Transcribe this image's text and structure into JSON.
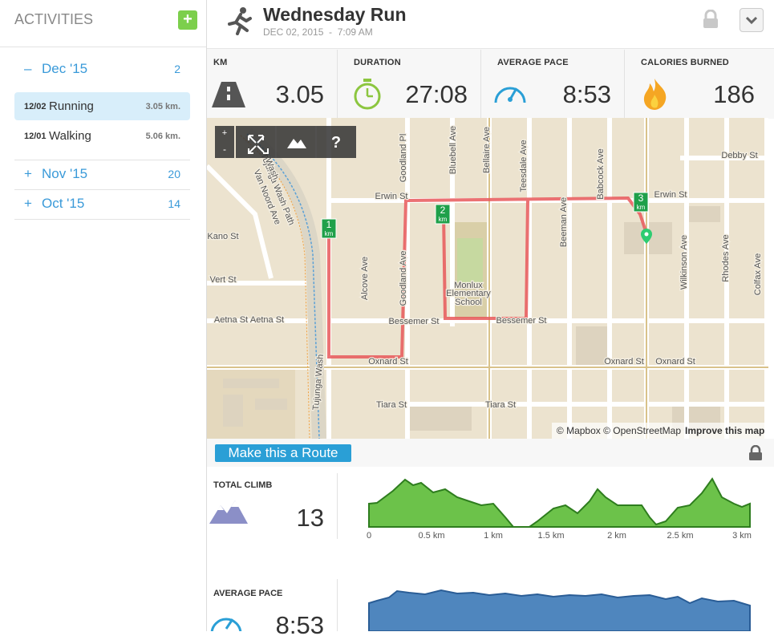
{
  "sidebar": {
    "title": "ACTIVITIES",
    "months": [
      {
        "toggle": "–",
        "label": "Dec '15",
        "count": 2,
        "activities": [
          {
            "date": "12/02",
            "name": "Running",
            "distance": "3.05 km."
          },
          {
            "date": "12/01",
            "name": "Walking",
            "distance": "5.06 km."
          }
        ]
      },
      {
        "toggle": "+",
        "label": "Nov '15",
        "count": 20
      },
      {
        "toggle": "+",
        "label": "Oct '15",
        "count": 14
      }
    ]
  },
  "header": {
    "title": "Wednesday Run",
    "subtitle": "DEC 02, 2015  -  7:09 AM"
  },
  "stats": [
    {
      "label": "KM",
      "value": "3.05"
    },
    {
      "label": "DURATION",
      "value": "27:08"
    },
    {
      "label": "AVERAGE PACE",
      "value": "8:53"
    },
    {
      "label": "CALORIES BURNED",
      "value": "186"
    }
  ],
  "map": {
    "controls": [
      "+",
      "-",
      "?"
    ],
    "markers": [
      {
        "number": "1",
        "unit": "km"
      },
      {
        "number": "2",
        "unit": "km"
      },
      {
        "number": "3",
        "unit": "km"
      }
    ],
    "attribution": "© Mapbox © OpenStreetMap",
    "improve_link": "Improve this map",
    "labels": [
      "Erwin St",
      "Erwin St",
      "Bessemer St",
      "Bessemer St",
      "Oxnard St",
      "Oxnard St",
      "Oxnard St",
      "Tiara St",
      "Tiara St",
      "Debby St",
      "Aetna St",
      "Aetna St",
      "Vert St",
      "Kano St",
      "Van Noord Ave",
      "Goodland Pl",
      "Bluebell Ave",
      "Bellaire Ave",
      "Teesdale Ave",
      "Beeman Ave",
      "Babcock Ave",
      "Wilkinson Ave",
      "Rhodes Ave",
      "Alcove Ave",
      "Goodland Ave",
      "Colfax Ave",
      "Monlux",
      "Elementary",
      "School",
      "Tujunga Wash Path",
      "Tujunga Wash",
      "Wash"
    ]
  },
  "route_button": "Make this a Route",
  "total_climb": {
    "label": "TOTAL CLIMB",
    "value": "13",
    "axis_labels": [
      "0",
      "0.5 km",
      "1 km",
      "1.5 km",
      "2 km",
      "2.5 km",
      "3 km"
    ]
  },
  "average_pace": {
    "label": "AVERAGE PACE",
    "value": "8:53"
  }
}
